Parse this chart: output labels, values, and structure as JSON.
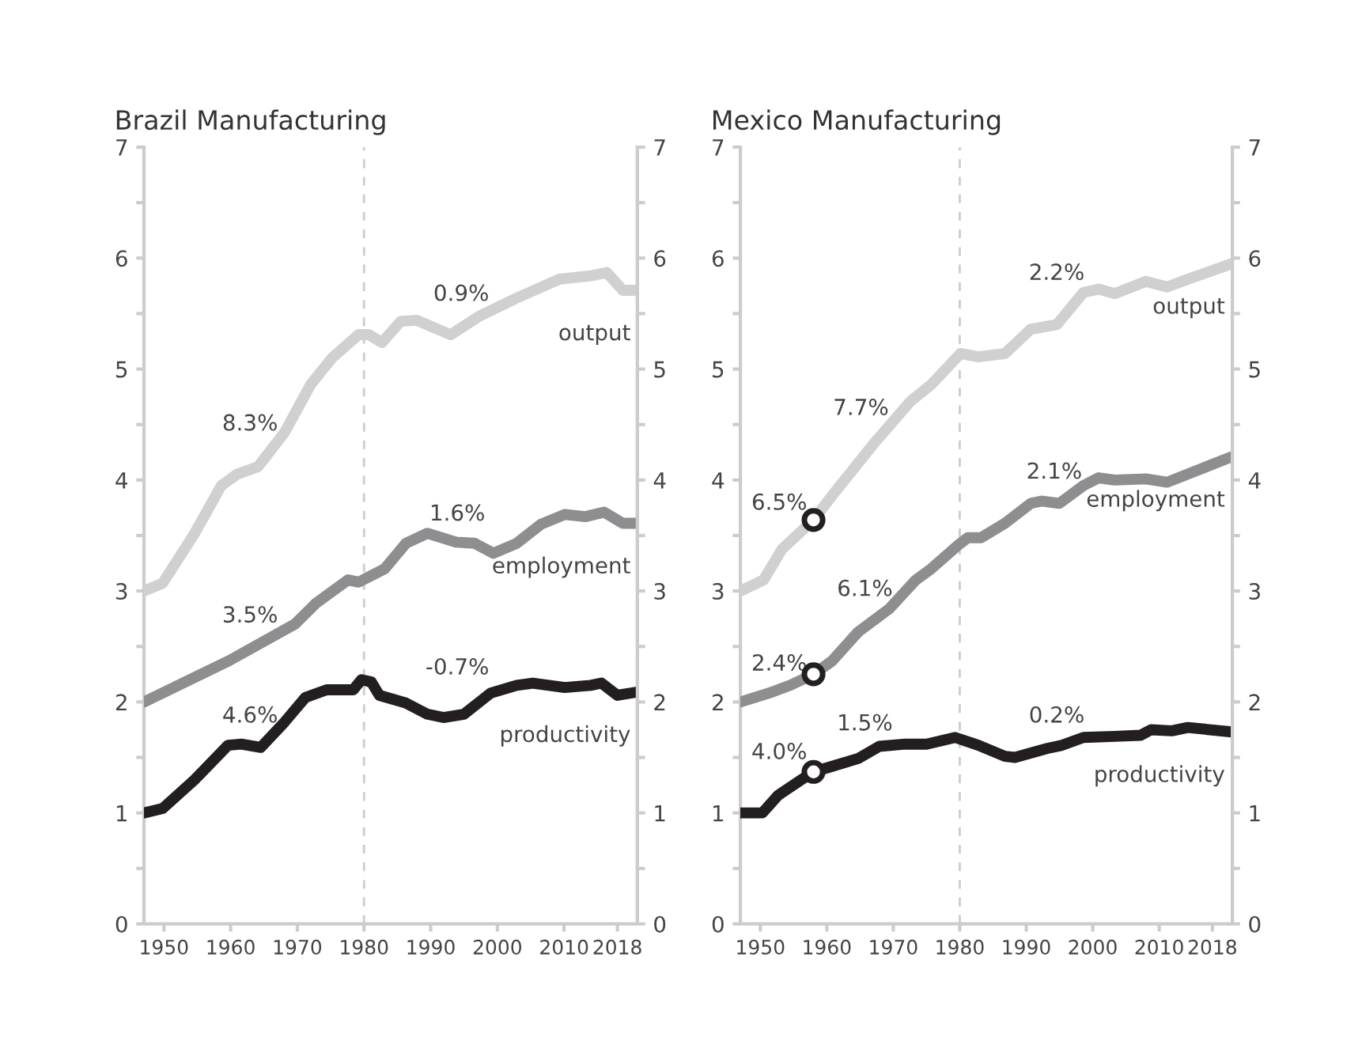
{
  "chart_data": [
    {
      "type": "line",
      "title": "Brazil Manufacturing",
      "xlim": [
        1947,
        2021
      ],
      "xticks": [
        1950,
        1960,
        1970,
        1980,
        1990,
        2000,
        2010,
        2018
      ],
      "ylim": [
        0,
        7
      ],
      "yticks": [
        0,
        {
          "value": 0.5,
          "label": null
        },
        1,
        {
          "value": 1.5,
          "label": null
        },
        2,
        {
          "value": 2.5,
          "label": null
        },
        3,
        {
          "value": 3.5,
          "label": null
        },
        4,
        {
          "value": 4.5,
          "label": null
        },
        5,
        {
          "value": 5.5,
          "label": null
        },
        6,
        {
          "value": 6.5,
          "label": null
        },
        7
      ],
      "y2lim": [
        0,
        7
      ],
      "y2ticks": [
        0,
        {
          "value": 0.5,
          "label": null
        },
        1,
        {
          "value": 1.5,
          "label": null
        },
        2,
        {
          "value": 2.5,
          "label": null
        },
        3,
        {
          "value": 3.5,
          "label": null
        },
        4,
        {
          "value": 4.5,
          "label": null
        },
        5,
        {
          "value": 5.5,
          "label": null
        },
        6,
        {
          "value": 6.5,
          "label": null
        },
        7
      ],
      "grid": false,
      "legend": false,
      "marker": "none",
      "line_style": "solid",
      "ref_lines": [
        {
          "axis": "x",
          "value": 1980,
          "label": null,
          "color": "#cccccc",
          "line_style": "dashed"
        }
      ],
      "series": [
        {
          "name": "output",
          "color": "#d0d0d0",
          "x": [
            1947,
            1949.8,
            1954.6,
            1958.6,
            1960.9,
            1964.1,
            1968.1,
            1972,
            1975.2,
            1979.2,
            1980.7,
            1982.7,
            1985.5,
            1987.9,
            1993,
            1997.4,
            2002.9,
            2009.3,
            2014,
            2016.4,
            2018.8,
            2021
          ],
          "values": [
            3.0,
            3.07,
            3.52,
            3.95,
            4.05,
            4.12,
            4.43,
            4.86,
            5.1,
            5.31,
            5.31,
            5.24,
            5.43,
            5.44,
            5.31,
            5.48,
            5.64,
            5.81,
            5.84,
            5.87,
            5.71,
            5.71
          ]
        },
        {
          "name": "employment",
          "color": "#8e8e90",
          "x": [
            1947,
            1959.7,
            1969.6,
            1972.8,
            1977.6,
            1979.2,
            1983.1,
            1986.3,
            1989.5,
            1993.8,
            1996.6,
            1999.4,
            2002.9,
            2006.5,
            2010.1,
            2013.2,
            2016,
            2018.8,
            2021
          ],
          "values": [
            2.0,
            2.37,
            2.7,
            2.89,
            3.1,
            3.08,
            3.2,
            3.43,
            3.52,
            3.44,
            3.43,
            3.34,
            3.43,
            3.6,
            3.69,
            3.67,
            3.71,
            3.61,
            3.61
          ]
        },
        {
          "name": "productivity",
          "color": "#231f20",
          "x": [
            1947,
            1949.8,
            1954.6,
            1959.6,
            1961.6,
            1964.5,
            1968.1,
            1971.2,
            1974.4,
            1978.4,
            1979.6,
            1981.1,
            1982.3,
            1986.3,
            1989.5,
            1991.9,
            1995,
            1999,
            2002.9,
            2005.3,
            2010.1,
            2014,
            2015.6,
            2018,
            2021
          ],
          "values": [
            1.0,
            1.04,
            1.3,
            1.61,
            1.62,
            1.59,
            1.82,
            2.04,
            2.11,
            2.11,
            2.2,
            2.18,
            2.06,
            1.99,
            1.89,
            1.86,
            1.89,
            2.08,
            2.15,
            2.17,
            2.13,
            2.15,
            2.17,
            2.06,
            2.09
          ]
        }
      ],
      "annotations": [
        "8.3%",
        "0.9%",
        "3.5%",
        "1.6%",
        "4.6%",
        "-0.7%"
      ]
    },
    {
      "type": "line",
      "title": "Mexico Manufacturing",
      "xlim": [
        1947,
        2021
      ],
      "xticks": [
        1950,
        1960,
        1970,
        1980,
        1990,
        2000,
        2010,
        2018
      ],
      "ylim": [
        0,
        7
      ],
      "yticks": [
        0,
        {
          "value": 0.5,
          "label": null
        },
        1,
        {
          "value": 1.5,
          "label": null
        },
        2,
        {
          "value": 2.5,
          "label": null
        },
        3,
        {
          "value": 3.5,
          "label": null
        },
        4,
        {
          "value": 4.5,
          "label": null
        },
        5,
        {
          "value": 5.5,
          "label": null
        },
        6,
        {
          "value": 6.5,
          "label": null
        },
        7
      ],
      "y2lim": [
        0,
        7
      ],
      "y2ticks": [
        0,
        {
          "value": 0.5,
          "label": null
        },
        1,
        {
          "value": 1.5,
          "label": null
        },
        2,
        {
          "value": 2.5,
          "label": null
        },
        3,
        {
          "value": 3.5,
          "label": null
        },
        4,
        {
          "value": 4.5,
          "label": null
        },
        5,
        {
          "value": 5.5,
          "label": null
        },
        6,
        {
          "value": 6.5,
          "label": null
        },
        7
      ],
      "grid": false,
      "legend": false,
      "marker": "none",
      "line_style": "solid",
      "ref_lines": [
        {
          "axis": "x",
          "value": 1980,
          "label": null,
          "color": "#cccccc",
          "line_style": "dashed"
        }
      ],
      "series": [
        {
          "name": "output",
          "color": "#d0d0d0",
          "x": [
            1947,
            1950.5,
            1953.3,
            1958,
            1960.8,
            1967.1,
            1972.6,
            1975.7,
            1980.1,
            1982.8,
            1986.8,
            1990.7,
            1994.6,
            1998.6,
            2000.9,
            2003.3,
            2008,
            2011.2,
            2014.3,
            2020.9
          ],
          "values": [
            3.0,
            3.1,
            3.38,
            3.64,
            3.86,
            4.33,
            4.71,
            4.86,
            5.14,
            5.11,
            5.14,
            5.36,
            5.4,
            5.69,
            5.72,
            5.68,
            5.79,
            5.74,
            5.81,
            5.95
          ]
        },
        {
          "name": "employment",
          "color": "#8e8e90",
          "x": [
            1947,
            1951.3,
            1954.5,
            1958,
            1960.8,
            1964.7,
            1969.4,
            1973.4,
            1975.7,
            1979.7,
            1981.2,
            1983.2,
            1986.8,
            1990.7,
            1992.3,
            1995,
            1998.6,
            2000.9,
            2003.3,
            2008,
            2011.2,
            2020.9
          ],
          "values": [
            2.0,
            2.08,
            2.15,
            2.25,
            2.37,
            2.63,
            2.84,
            3.1,
            3.2,
            3.41,
            3.48,
            3.48,
            3.61,
            3.79,
            3.81,
            3.79,
            3.95,
            4.02,
            4.0,
            4.01,
            3.98,
            4.21
          ]
        },
        {
          "name": "productivity",
          "color": "#231f20",
          "x": [
            1947,
            1950.3,
            1952.7,
            1956.2,
            1958,
            1960.8,
            1964.7,
            1967.9,
            1971.8,
            1975,
            1979.3,
            1982.8,
            1986.8,
            1988.3,
            1993.1,
            1995.4,
            1998.6,
            2003.3,
            2007.2,
            2008.8,
            2011.9,
            2014.3,
            2020.9
          ],
          "values": [
            1.0,
            1.0,
            1.16,
            1.3,
            1.37,
            1.42,
            1.49,
            1.6,
            1.62,
            1.62,
            1.68,
            1.61,
            1.51,
            1.5,
            1.58,
            1.61,
            1.68,
            1.69,
            1.7,
            1.75,
            1.74,
            1.77,
            1.73
          ]
        },
        {
          "type": "scatter",
          "color": "#231f20",
          "marker": "circle",
          "x": [
            1958,
            1958,
            1958
          ],
          "values": [
            3.64,
            2.25,
            1.37
          ]
        }
      ],
      "annotations": [
        "6.5%",
        "7.7%",
        "2.2%",
        "2.1%",
        "6.1%",
        "2.4%",
        "1.5%",
        "4.0%",
        "0.2%"
      ]
    }
  ]
}
